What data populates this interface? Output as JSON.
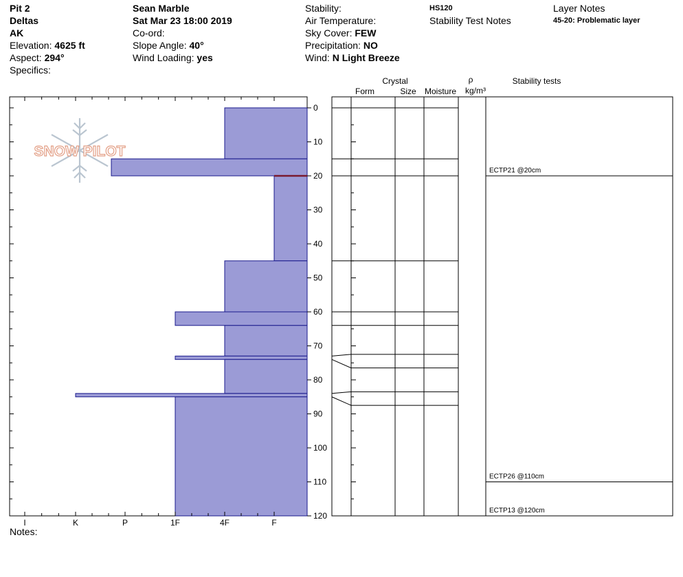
{
  "header": {
    "col1": {
      "pit": "Pit 2",
      "location": "Deltas",
      "state": "AK",
      "elevation_label": "Elevation: ",
      "elevation_value": "4625 ft",
      "aspect_label": "Aspect: ",
      "aspect_value": "294°",
      "specifics_label": "Specifics:"
    },
    "col2": {
      "observer": "Sean Marble",
      "datetime": "Sat Mar 23 18:00 2019",
      "coord_label": "Co-ord:",
      "slope_label": "Slope Angle: ",
      "slope_value": "40°",
      "wind_loading_label": "Wind Loading: ",
      "wind_loading_value": "yes"
    },
    "col3": {
      "stability_label": "Stability:",
      "air_temp_label": "Air Temperature:",
      "sky_label": "Sky Cover: ",
      "sky_value": "FEW",
      "precip_label": "Precipitation: ",
      "precip_value": "NO",
      "wind_label": "Wind: ",
      "wind_value": "N Light Breeze"
    },
    "col4": {
      "hs": "HS120",
      "stability_notes_label": "Stability Test Notes"
    },
    "col5": {
      "layer_notes_label": "Layer Notes",
      "layer_note": "45-20: Problematic layer"
    }
  },
  "logo_text": "SNOW PILOT",
  "table_headers": {
    "crystal": "Crystal",
    "form": "Form",
    "size": "Size",
    "moisture": "Moisture",
    "rho": "ρ",
    "density_unit": "kg/m³",
    "stability_tests": "Stability tests"
  },
  "notes_label": "Notes:",
  "colors": {
    "fill": "#9b9bd6",
    "stroke": "#1a1a8c",
    "weak_layer": "#7a1a2e"
  },
  "chart_data": {
    "type": "bar",
    "orientation": "horizontal",
    "hardness_categories": [
      "I",
      "K",
      "P",
      "1F",
      "4F",
      "F"
    ],
    "depth_ticks": [
      0,
      10,
      20,
      30,
      40,
      50,
      60,
      70,
      80,
      90,
      100,
      110,
      120
    ],
    "depth_range": [
      0,
      120
    ],
    "layers": [
      {
        "top": 0,
        "bottom": 15,
        "hardness": "4F"
      },
      {
        "top": 15,
        "bottom": 20,
        "hardness": "P+"
      },
      {
        "top": 20,
        "bottom": 45,
        "hardness": "F"
      },
      {
        "top": 45,
        "bottom": 60,
        "hardness": "4F"
      },
      {
        "top": 60,
        "bottom": 64,
        "hardness": "1F"
      },
      {
        "top": 64,
        "bottom": 73,
        "hardness": "4F"
      },
      {
        "top": 73,
        "bottom": 74,
        "hardness": "1F"
      },
      {
        "top": 74,
        "bottom": 84,
        "hardness": "4F"
      },
      {
        "top": 84,
        "bottom": 85,
        "hardness": "K"
      },
      {
        "top": 85,
        "bottom": 120,
        "hardness": "1F"
      }
    ],
    "weak_layer_depth": 20,
    "stability_tests": [
      {
        "depth": 20,
        "label": "ECTP21 @20cm"
      },
      {
        "depth": 110,
        "label": "ECTP26 @110cm"
      },
      {
        "depth": 120,
        "label": "ECTP13 @120cm"
      }
    ]
  }
}
